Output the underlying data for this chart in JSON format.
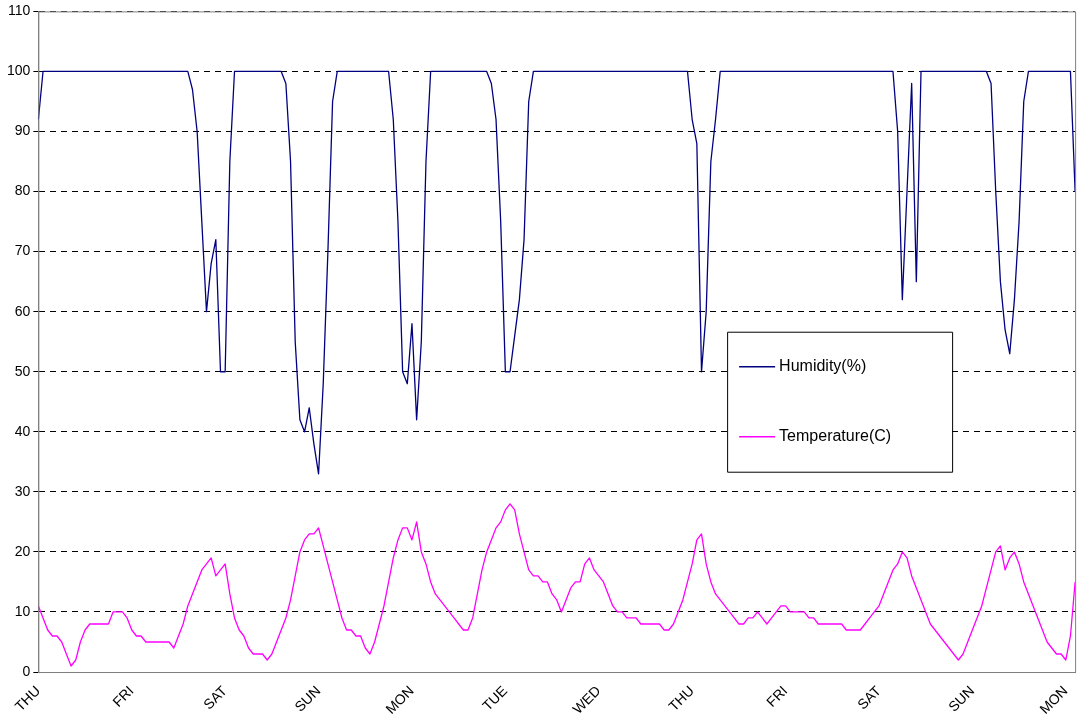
{
  "chart_data": {
    "type": "line",
    "categories": [
      "THU",
      null,
      null,
      null,
      null,
      null,
      null,
      null,
      null,
      null,
      null,
      null,
      null,
      null,
      null,
      null,
      null,
      null,
      null,
      null,
      "FRI",
      null,
      null,
      null,
      null,
      null,
      null,
      null,
      null,
      null,
      null,
      null,
      null,
      null,
      null,
      null,
      null,
      null,
      null,
      null,
      "SAT",
      null,
      null,
      null,
      null,
      null,
      null,
      null,
      null,
      null,
      null,
      null,
      null,
      null,
      null,
      null,
      null,
      null,
      null,
      null,
      "SUN",
      null,
      null,
      null,
      null,
      null,
      null,
      null,
      null,
      null,
      null,
      null,
      null,
      null,
      null,
      null,
      null,
      null,
      null,
      null,
      "MON",
      null,
      null,
      null,
      null,
      null,
      null,
      null,
      null,
      null,
      null,
      null,
      null,
      null,
      null,
      null,
      null,
      null,
      null,
      null,
      "TUE",
      null,
      null,
      null,
      null,
      null,
      null,
      null,
      null,
      null,
      null,
      null,
      null,
      null,
      null,
      null,
      null,
      null,
      null,
      null,
      "WED",
      null,
      null,
      null,
      null,
      null,
      null,
      null,
      null,
      null,
      null,
      null,
      null,
      null,
      null,
      null,
      null,
      null,
      null,
      null,
      "THU",
      null,
      null,
      null,
      null,
      null,
      null,
      null,
      null,
      null,
      null,
      null,
      null,
      null,
      null,
      null,
      null,
      null,
      null,
      null,
      "FRI",
      null,
      null,
      null,
      null,
      null,
      null,
      null,
      null,
      null,
      null,
      null,
      null,
      null,
      null,
      null,
      null,
      null,
      null,
      null,
      "SAT",
      null,
      null,
      null,
      null,
      null,
      null,
      null,
      null,
      null,
      null,
      null,
      null,
      null,
      null,
      null,
      null,
      null,
      null,
      null,
      "SUN",
      null,
      null,
      null,
      null,
      null,
      null,
      null,
      null,
      null,
      null,
      null,
      null,
      null,
      null,
      null,
      null,
      null,
      null,
      null,
      "MON",
      null,
      null
    ],
    "ylim": [
      0,
      110
    ],
    "yticks": [
      0,
      10,
      20,
      30,
      40,
      50,
      60,
      70,
      80,
      90,
      100,
      110
    ],
    "grid": "y",
    "legend": "right",
    "marker": "none",
    "series": [
      {
        "name": "Humidity(%)",
        "color": "#000080",
        "values": [
          92,
          100,
          100,
          100,
          100,
          100,
          100,
          100,
          100,
          100,
          100,
          100,
          100,
          100,
          100,
          100,
          100,
          100,
          100,
          100,
          100,
          100,
          100,
          100,
          100,
          100,
          100,
          100,
          100,
          100,
          100,
          100,
          100,
          97,
          90,
          75,
          60,
          68,
          72,
          50,
          50,
          85,
          100,
          100,
          100,
          100,
          100,
          100,
          100,
          100,
          100,
          100,
          100,
          98,
          85,
          55,
          42,
          40,
          44,
          38,
          33,
          48,
          70,
          95,
          100,
          100,
          100,
          100,
          100,
          100,
          100,
          100,
          100,
          100,
          100,
          100,
          92,
          75,
          50,
          48,
          58,
          42,
          55,
          85,
          100,
          100,
          100,
          100,
          100,
          100,
          100,
          100,
          100,
          100,
          100,
          100,
          100,
          98,
          92,
          75,
          50,
          50,
          56,
          62,
          72,
          95,
          100,
          100,
          100,
          100,
          100,
          100,
          100,
          100,
          100,
          100,
          100,
          100,
          100,
          100,
          100,
          100,
          100,
          100,
          100,
          100,
          100,
          100,
          100,
          100,
          100,
          100,
          100,
          100,
          100,
          100,
          100,
          100,
          100,
          100,
          92,
          88,
          50,
          60,
          85,
          92,
          100,
          100,
          100,
          100,
          100,
          100,
          100,
          100,
          100,
          100,
          100,
          100,
          100,
          100,
          100,
          100,
          100,
          100,
          100,
          100,
          100,
          100,
          100,
          100,
          100,
          100,
          100,
          100,
          100,
          100,
          100,
          100,
          100,
          100,
          100,
          100,
          100,
          100,
          90,
          62,
          80,
          98,
          65,
          100,
          100,
          100,
          100,
          100,
          100,
          100,
          100,
          100,
          100,
          100,
          100,
          100,
          100,
          100,
          98,
          80,
          65,
          57,
          53,
          62,
          75,
          95,
          100,
          100,
          100,
          100,
          100,
          100,
          100,
          100,
          100,
          100,
          80
        ]
      },
      {
        "name": "Temperature(C)",
        "color": "#ff00ff",
        "values": [
          11,
          9,
          7,
          6,
          6,
          5,
          3,
          1,
          2,
          5,
          7,
          8,
          8,
          8,
          8,
          8,
          10,
          10,
          10,
          9,
          7,
          6,
          6,
          5,
          5,
          5,
          5,
          5,
          5,
          4,
          6,
          8,
          11,
          13,
          15,
          17,
          18,
          19,
          16,
          17,
          18,
          13,
          9,
          7,
          6,
          4,
          3,
          3,
          3,
          2,
          3,
          5,
          7,
          9,
          12,
          16,
          20,
          22,
          23,
          23,
          24,
          21,
          18,
          15,
          12,
          9,
          7,
          7,
          6,
          6,
          4,
          3,
          5,
          8,
          11,
          15,
          19,
          22,
          24,
          24,
          22,
          25,
          20,
          18,
          15,
          13,
          12,
          11,
          10,
          9,
          8,
          7,
          7,
          9,
          13,
          17,
          20,
          22,
          24,
          25,
          27,
          28,
          27,
          23,
          20,
          17,
          16,
          16,
          15,
          15,
          13,
          12,
          10,
          12,
          14,
          15,
          15,
          18,
          19,
          17,
          16,
          15,
          13,
          11,
          10,
          10,
          9,
          9,
          9,
          8,
          8,
          8,
          8,
          8,
          7,
          7,
          8,
          10,
          12,
          15,
          18,
          22,
          23,
          18,
          15,
          13,
          12,
          11,
          10,
          9,
          8,
          8,
          9,
          9,
          10,
          9,
          8,
          9,
          10,
          11,
          11,
          10,
          10,
          10,
          10,
          9,
          9,
          8,
          8,
          8,
          8,
          8,
          8,
          7,
          7,
          7,
          7,
          8,
          9,
          10,
          11,
          13,
          15,
          17,
          18,
          20,
          19,
          16,
          14,
          12,
          10,
          8,
          7,
          6,
          5,
          4,
          3,
          2,
          3,
          5,
          7,
          9,
          11,
          14,
          17,
          20,
          21,
          17,
          19,
          20,
          18,
          15,
          13,
          11,
          9,
          7,
          5,
          4,
          3,
          3,
          2,
          6,
          15
        ]
      }
    ]
  }
}
